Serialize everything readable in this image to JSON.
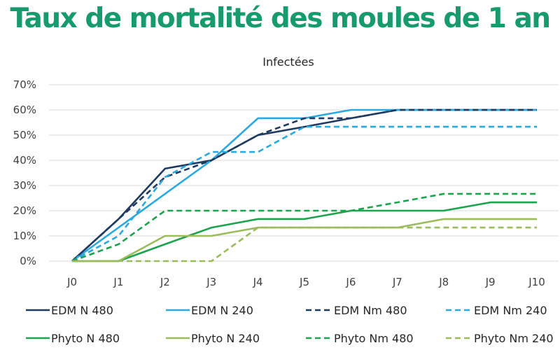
{
  "chart_data": {
    "type": "line",
    "title": "Taux de mortalité des moules de 1 an",
    "subtitle": "Infectées",
    "xlabel": "",
    "ylabel": "",
    "categories": [
      "J0",
      "J1",
      "J2",
      "J3",
      "J4",
      "J5",
      "J6",
      "J7",
      "J8",
      "J9",
      "J10"
    ],
    "ylim": [
      0,
      70
    ],
    "yticks": [
      "0%",
      "10%",
      "20%",
      "30%",
      "40%",
      "50%",
      "60%",
      "70%"
    ],
    "grid": true,
    "legend_position": "bottom",
    "series": [
      {
        "name": "EDM N 480",
        "color": "#1f3a5f",
        "dash": false,
        "values": [
          0,
          16.7,
          36.7,
          40,
          50,
          53.3,
          56.7,
          60,
          60,
          60,
          60
        ]
      },
      {
        "name": "EDM N 240",
        "color": "#2aa9de",
        "dash": false,
        "values": [
          0,
          13.3,
          26.7,
          40,
          56.7,
          56.7,
          60,
          60,
          60,
          60,
          60
        ]
      },
      {
        "name": "EDM Nm 480",
        "color": "#1f3a5f",
        "dash": true,
        "values": [
          0,
          16.7,
          33.3,
          40,
          50,
          56.7,
          56.7,
          60,
          60,
          60,
          60
        ]
      },
      {
        "name": "EDM Nm 240",
        "color": "#2aa9de",
        "dash": true,
        "values": [
          0,
          10,
          33.3,
          43.3,
          43.3,
          53.3,
          53.3,
          53.3,
          53.3,
          53.3,
          53.3
        ]
      },
      {
        "name": "Phyto N 480",
        "color": "#1ca34e",
        "dash": false,
        "values": [
          0,
          0,
          6.7,
          13.3,
          16.7,
          16.7,
          20,
          20,
          20,
          23.3,
          23.3
        ]
      },
      {
        "name": "Phyto N 240",
        "color": "#9bbb5c",
        "dash": false,
        "values": [
          0,
          0,
          10,
          10,
          13.3,
          13.3,
          13.3,
          13.3,
          16.7,
          16.7,
          16.7
        ]
      },
      {
        "name": "Phyto Nm 480",
        "color": "#1ca34e",
        "dash": true,
        "values": [
          0,
          6.7,
          20,
          20,
          20,
          20,
          20,
          23.3,
          26.7,
          26.7,
          26.7
        ]
      },
      {
        "name": "Phyto Nm 240",
        "color": "#9bbb5c",
        "dash": true,
        "values": [
          0,
          0,
          0,
          0,
          13.3,
          13.3,
          13.3,
          13.3,
          13.3,
          13.3,
          13.3
        ]
      }
    ]
  }
}
